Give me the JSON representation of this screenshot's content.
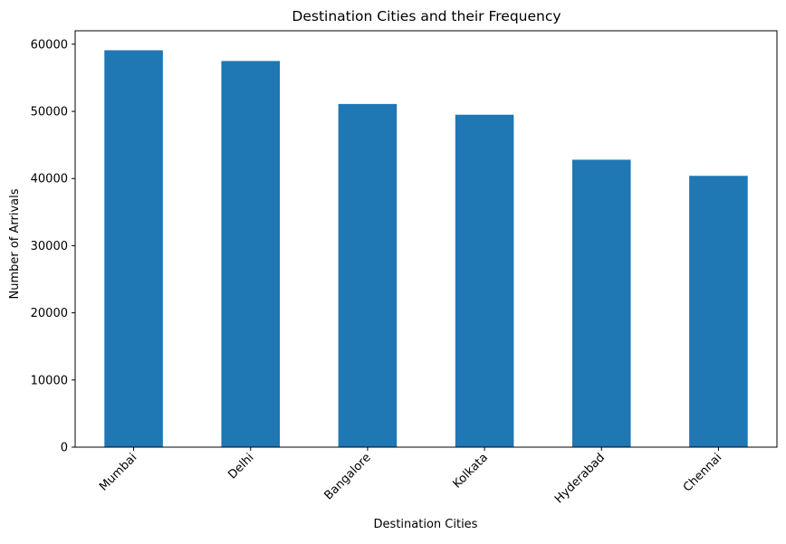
{
  "chart_data": {
    "type": "bar",
    "title": "Destination Cities and their Frequency",
    "xlabel": "Destination Cities",
    "ylabel": "Number of Arrivals",
    "categories": [
      "Mumbai",
      "Delhi",
      "Bangalore",
      "Kolkata",
      "Hyderabad",
      "Chennai"
    ],
    "values": [
      59100,
      57500,
      51100,
      49500,
      42800,
      40400
    ],
    "ylim": [
      0,
      62000
    ],
    "yticks": [
      0,
      10000,
      20000,
      30000,
      40000,
      50000,
      60000
    ],
    "ytick_labels": [
      "0",
      "10000",
      "20000",
      "30000",
      "40000",
      "50000",
      "60000"
    ],
    "bar_color": "#1f77b4",
    "grid": false,
    "legend": "none",
    "xtick_rotation": "45 degrees"
  }
}
